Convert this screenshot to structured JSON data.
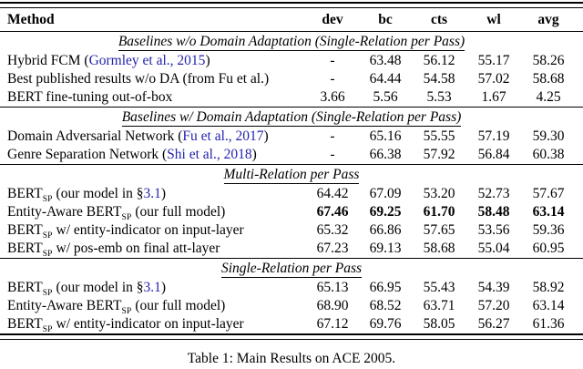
{
  "colors": {
    "citation_blue": "#2323ae",
    "text": "#000000",
    "background": "#ffffff"
  },
  "table": {
    "columns": [
      "Method",
      "dev",
      "bc",
      "cts",
      "wl",
      "avg"
    ],
    "sections": [
      {
        "title": "Baselines w/o Domain Adaptation (Single-Relation per Pass)",
        "rows": [
          {
            "method": {
              "pre": "Hybrid FCM (",
              "sub": "",
              "mid": "",
              "link": "Gormley et al., 2015",
              "post": ")"
            },
            "values": [
              "-",
              "63.48",
              "56.12",
              "55.17",
              "58.26"
            ],
            "emphasis": "normal"
          },
          {
            "method": {
              "pre": "Best published results w/o DA (from Fu et al.)",
              "sub": "",
              "mid": "",
              "link": "",
              "post": ""
            },
            "values": [
              "-",
              "64.44",
              "54.58",
              "57.02",
              "58.68"
            ],
            "emphasis": "normal"
          },
          {
            "method": {
              "pre": "BERT fine-tuning out-of-box",
              "sub": "",
              "mid": "",
              "link": "",
              "post": ""
            },
            "values": [
              "3.66",
              "5.56",
              "5.53",
              "1.67",
              "4.25"
            ],
            "emphasis": "normal"
          }
        ]
      },
      {
        "title": "Baselines w/ Domain Adaptation (Single-Relation per Pass)",
        "rows": [
          {
            "method": {
              "pre": "Domain Adversarial Network (",
              "sub": "",
              "mid": "",
              "link": "Fu et al., 2017",
              "post": ")"
            },
            "values": [
              "-",
              "65.16",
              "55.55",
              "57.19",
              "59.30"
            ],
            "emphasis": "normal"
          },
          {
            "method": {
              "pre": "Genre Separation Network (",
              "sub": "",
              "mid": "",
              "link": "Shi et al., 2018",
              "post": ")"
            },
            "values": [
              "-",
              "66.38",
              "57.92",
              "56.84",
              "60.38"
            ],
            "emphasis": "normal"
          }
        ]
      },
      {
        "title": "Multi-Relation per Pass",
        "rows": [
          {
            "method": {
              "pre": "BERT",
              "sub": "SP",
              "mid": " (our model in §",
              "link": "3.1",
              "post": ")"
            },
            "values": [
              "64.42",
              "67.09",
              "53.20",
              "52.73",
              "57.67"
            ],
            "emphasis": "normal"
          },
          {
            "method": {
              "pre": "Entity-Aware BERT",
              "sub": "SP",
              "mid": " (our full model)",
              "link": "",
              "post": ""
            },
            "values": [
              "67.46",
              "69.25",
              "61.70",
              "58.48",
              "63.14"
            ],
            "emphasis": "bold"
          },
          {
            "method": {
              "pre": "BERT",
              "sub": "SP",
              "mid": " w/ entity-indicator on input-layer",
              "link": "",
              "post": ""
            },
            "values": [
              "65.32",
              "66.86",
              "57.65",
              "53.56",
              "59.36"
            ],
            "emphasis": "normal"
          },
          {
            "method": {
              "pre": "BERT",
              "sub": "SP",
              "mid": " w/ pos-emb on final att-layer",
              "link": "",
              "post": ""
            },
            "values": [
              "67.23",
              "69.13",
              "58.68",
              "55.04",
              "60.95"
            ],
            "emphasis": "normal"
          }
        ]
      },
      {
        "title": "Single-Relation per Pass",
        "rows": [
          {
            "method": {
              "pre": "BERT",
              "sub": "SP",
              "mid": " (our model in §",
              "link": "3.1",
              "post": ")"
            },
            "values": [
              "65.13",
              "66.95",
              "55.43",
              "54.39",
              "58.92"
            ],
            "emphasis": "normal"
          },
          {
            "method": {
              "pre": "Entity-Aware BERT",
              "sub": "SP",
              "mid": " (our full model)",
              "link": "",
              "post": ""
            },
            "values": [
              "68.90",
              "68.52",
              "63.71",
              "57.20",
              "63.14"
            ],
            "emphasis": "normal"
          },
          {
            "method": {
              "pre": "BERT",
              "sub": "SP",
              "mid": " w/ entity-indicator on input-layer",
              "link": "",
              "post": ""
            },
            "values": [
              "67.12",
              "69.76",
              "58.05",
              "56.27",
              "61.36"
            ],
            "emphasis": "normal"
          }
        ]
      }
    ]
  },
  "caption": "Table 1: Main Results on ACE 2005."
}
